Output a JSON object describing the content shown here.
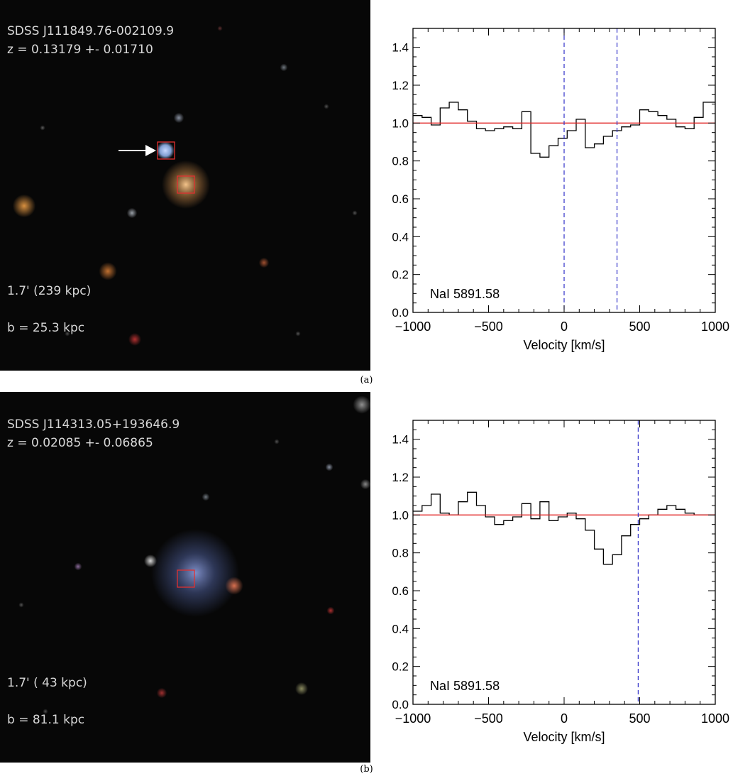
{
  "panels": [
    {
      "label": "(a)",
      "image": {
        "object_name": "SDSS J111849.76-002109.9",
        "redshift": "z = 0.13179 +- 0.01710",
        "scale": "1.7' (239 kpc)",
        "impact": "b = 25.3 kpc",
        "has_arrow": true,
        "galaxy": "compact orange elliptical",
        "colors": {
          "marker": "#e03030",
          "arrow": "#ffffff"
        }
      },
      "chart_data": {
        "type": "line",
        "line_label": "NaI 5891.58",
        "xlabel": "Velocity [km/s]",
        "ylabel": "",
        "xlim": [
          -1000,
          1000
        ],
        "ylim": [
          0,
          1.5
        ],
        "xticks": [
          -1000,
          -500,
          0,
          500,
          1000
        ],
        "xtick_labels": [
          "−1000",
          "−500",
          "0",
          "500",
          "1000"
        ],
        "yticks": [
          0.0,
          0.2,
          0.4,
          0.6,
          0.8,
          1.0,
          1.2,
          1.4
        ],
        "ytick_labels": [
          "0.0",
          "0.2",
          "0.4",
          "0.6",
          "0.8",
          "1.0",
          "1.2",
          "1.4"
        ],
        "continuum": 1.0,
        "marker_velocities": [
          0,
          350
        ],
        "series": [
          {
            "x": [
              -1000,
              -940,
              -880,
              -820,
              -760,
              -700,
              -640,
              -580,
              -520,
              -460,
              -400,
              -340,
              -280,
              -220,
              -160,
              -100,
              -40,
              20,
              80,
              140,
              200,
              260,
              320,
              380,
              440,
              500,
              560,
              620,
              680,
              740,
              800,
              860,
              920,
              980
            ],
            "y": [
              1.04,
              1.03,
              0.99,
              1.08,
              1.11,
              1.07,
              1.01,
              0.97,
              0.96,
              0.97,
              0.98,
              0.97,
              1.06,
              0.84,
              0.82,
              0.88,
              0.92,
              0.96,
              1.02,
              0.87,
              0.89,
              0.93,
              0.96,
              0.98,
              0.99,
              1.07,
              1.06,
              1.04,
              1.02,
              0.98,
              0.97,
              1.03,
              1.11,
              1.11
            ]
          }
        ],
        "colors": {
          "spectrum": "#000000",
          "continuum": "#e02020",
          "marker": "#3030c8"
        }
      }
    },
    {
      "label": "(b)",
      "image": {
        "object_name": "SDSS J114313.05+193646.9",
        "redshift": "z = 0.02085 +- 0.06865",
        "scale": "1.7' ( 43 kpc)",
        "impact": "b = 81.1 kpc",
        "has_arrow": false,
        "galaxy": "diffuse blue irregular",
        "colors": {
          "marker": "#e03030",
          "arrow": "#ffffff"
        }
      },
      "chart_data": {
        "type": "line",
        "line_label": "NaI 5891.58",
        "xlabel": "Velocity [km/s]",
        "ylabel": "",
        "xlim": [
          -1000,
          1000
        ],
        "ylim": [
          0,
          1.5
        ],
        "xticks": [
          -1000,
          -500,
          0,
          500,
          1000
        ],
        "xtick_labels": [
          "−1000",
          "−500",
          "0",
          "500",
          "1000"
        ],
        "yticks": [
          0.0,
          0.2,
          0.4,
          0.6,
          0.8,
          1.0,
          1.2,
          1.4
        ],
        "ytick_labels": [
          "0.0",
          "0.2",
          "0.4",
          "0.6",
          "0.8",
          "1.0",
          "1.2",
          "1.4"
        ],
        "continuum": 1.0,
        "marker_velocities": [
          490
        ],
        "series": [
          {
            "x": [
              -1000,
              -940,
              -880,
              -820,
              -760,
              -700,
              -640,
              -580,
              -520,
              -460,
              -400,
              -340,
              -280,
              -220,
              -160,
              -100,
              -40,
              20,
              80,
              140,
              200,
              260,
              320,
              380,
              440,
              500,
              560,
              620,
              680,
              740,
              800,
              860,
              920,
              980
            ],
            "y": [
              1.02,
              1.05,
              1.11,
              1.01,
              1.0,
              1.07,
              1.12,
              1.05,
              0.99,
              0.95,
              0.97,
              0.99,
              1.06,
              0.98,
              1.07,
              0.97,
              0.99,
              1.01,
              0.98,
              0.92,
              0.82,
              0.74,
              0.79,
              0.89,
              0.95,
              0.98,
              1.0,
              1.03,
              1.05,
              1.03,
              1.01,
              1.0,
              1.0,
              1.0
            ]
          }
        ],
        "colors": {
          "spectrum": "#000000",
          "continuum": "#e02020",
          "marker": "#3030c8"
        }
      }
    }
  ]
}
